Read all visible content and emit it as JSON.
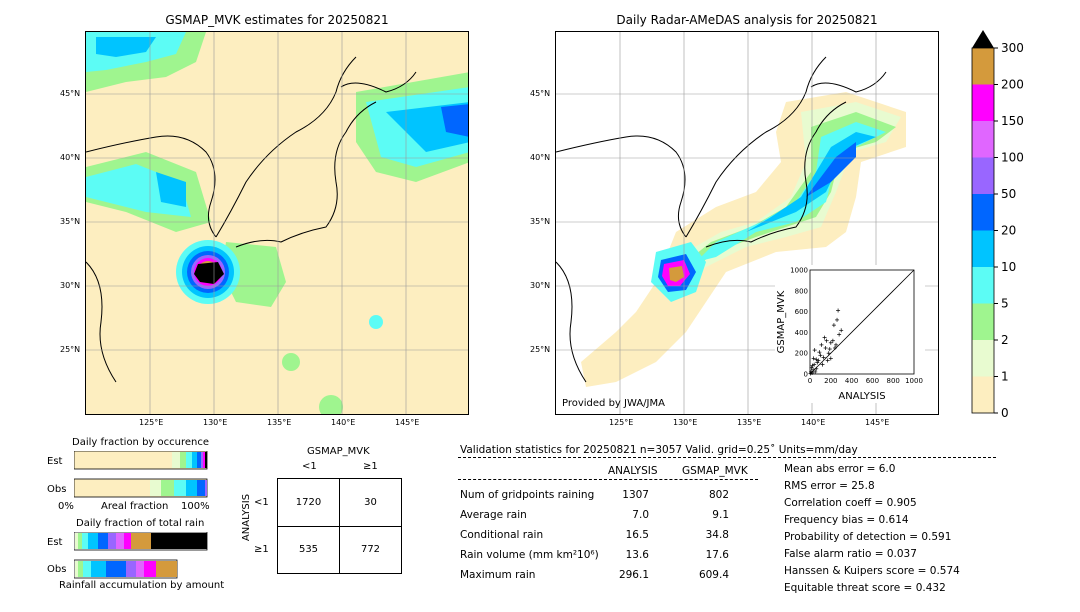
{
  "left_map": {
    "title": "GSMAP_MVK estimates for 20250821",
    "lat_labels": [
      "45°N",
      "40°N",
      "35°N",
      "30°N",
      "25°N"
    ],
    "lon_labels": [
      "125°E",
      "130°E",
      "135°E",
      "140°E",
      "145°E"
    ]
  },
  "right_map": {
    "title": "Daily Radar-AMeDAS analysis for 20250821",
    "lat_labels": [
      "45°N",
      "40°N",
      "35°N",
      "30°N",
      "25°N"
    ],
    "lon_labels": [
      "125°E",
      "130°E",
      "135°E",
      "140°E",
      "145°E"
    ],
    "credit": "Provided by JWA/JMA"
  },
  "colorbar": {
    "ticks": [
      "0",
      "1",
      "2",
      "5",
      "10",
      "20",
      "50",
      "100",
      "150",
      "200",
      "300"
    ],
    "colors": [
      "#fdeec0",
      "#e8fbd0",
      "#9ff58f",
      "#5cfcf5",
      "#00c4ff",
      "#0066ff",
      "#9966ff",
      "#e066ff",
      "#ff00ff",
      "#d49a3c",
      "#000000"
    ]
  },
  "scatter": {
    "xlabel": "ANALYSIS",
    "ylabel": "GSMAP_MVK",
    "ticks": [
      "0",
      "200",
      "400",
      "600",
      "800",
      "1000"
    ],
    "points": [
      [
        5,
        5
      ],
      [
        10,
        20
      ],
      [
        20,
        10
      ],
      [
        30,
        40
      ],
      [
        15,
        60
      ],
      [
        40,
        90
      ],
      [
        60,
        50
      ],
      [
        80,
        130
      ],
      [
        100,
        180
      ],
      [
        120,
        90
      ],
      [
        150,
        250
      ],
      [
        180,
        200
      ],
      [
        200,
        300
      ],
      [
        220,
        320
      ],
      [
        250,
        280
      ],
      [
        280,
        380
      ],
      [
        300,
        420
      ],
      [
        60,
        140
      ],
      [
        90,
        210
      ],
      [
        130,
        160
      ],
      [
        160,
        320
      ],
      [
        190,
        240
      ],
      [
        230,
        470
      ],
      [
        260,
        520
      ],
      [
        270,
        610
      ],
      [
        110,
        280
      ],
      [
        70,
        110
      ],
      [
        50,
        20
      ],
      [
        25,
        80
      ],
      [
        140,
        350
      ],
      [
        200,
        150
      ],
      [
        240,
        250
      ],
      [
        170,
        130
      ],
      [
        35,
        150
      ],
      [
        45,
        230
      ]
    ]
  },
  "fraction_occurrence": {
    "title": "Daily fraction by occurence",
    "rows": [
      "Est",
      "Obs"
    ],
    "axis_left": "0%",
    "axis_mid": "Areal fraction",
    "axis_right": "100%"
  },
  "fraction_total": {
    "title": "Daily fraction of total rain",
    "rows": [
      "Est",
      "Obs"
    ],
    "footer": "Rainfall accumulation by amount"
  },
  "contingency": {
    "col_title": "GSMAP_MVK",
    "col_labels": [
      "<1",
      "≥1"
    ],
    "row_title": "ANALYSIS",
    "row_labels": [
      "<1",
      "≥1"
    ],
    "cells": [
      [
        "1720",
        "30"
      ],
      [
        "535",
        "772"
      ]
    ]
  },
  "validation": {
    "header": "Validation statistics for 20250821  n=3057 Valid. grid=0.25˚ Units=mm/day",
    "col_analysis": "ANALYSIS",
    "col_gsmap": "GSMAP_MVK",
    "rows": [
      {
        "label": "Num of gridpoints raining",
        "analysis": "1307",
        "gsmap": "802"
      },
      {
        "label": "Average rain",
        "analysis": "7.0",
        "gsmap": "9.1"
      },
      {
        "label": "Conditional rain",
        "analysis": "16.5",
        "gsmap": "34.8"
      },
      {
        "label": "Rain volume (mm km²10⁶)",
        "analysis": "13.6",
        "gsmap": "17.6"
      },
      {
        "label": "Maximum rain",
        "analysis": "296.1",
        "gsmap": "609.4"
      }
    ],
    "scores": [
      "Mean abs error =    6.0",
      "RMS error =   25.8",
      "Correlation coeff =  0.905",
      "Frequency bias =  0.614",
      "Probability of detection =  0.591",
      "False alarm ratio =  0.037",
      "Hanssen & Kuipers score =  0.574",
      "Equitable threat score =  0.432"
    ]
  },
  "chart_data": {
    "type": "scatter",
    "title": "",
    "xlabel": "ANALYSIS",
    "ylabel": "GSMAP_MVK",
    "xlim": [
      0,
      1000
    ],
    "ylim": [
      0,
      1000
    ]
  }
}
